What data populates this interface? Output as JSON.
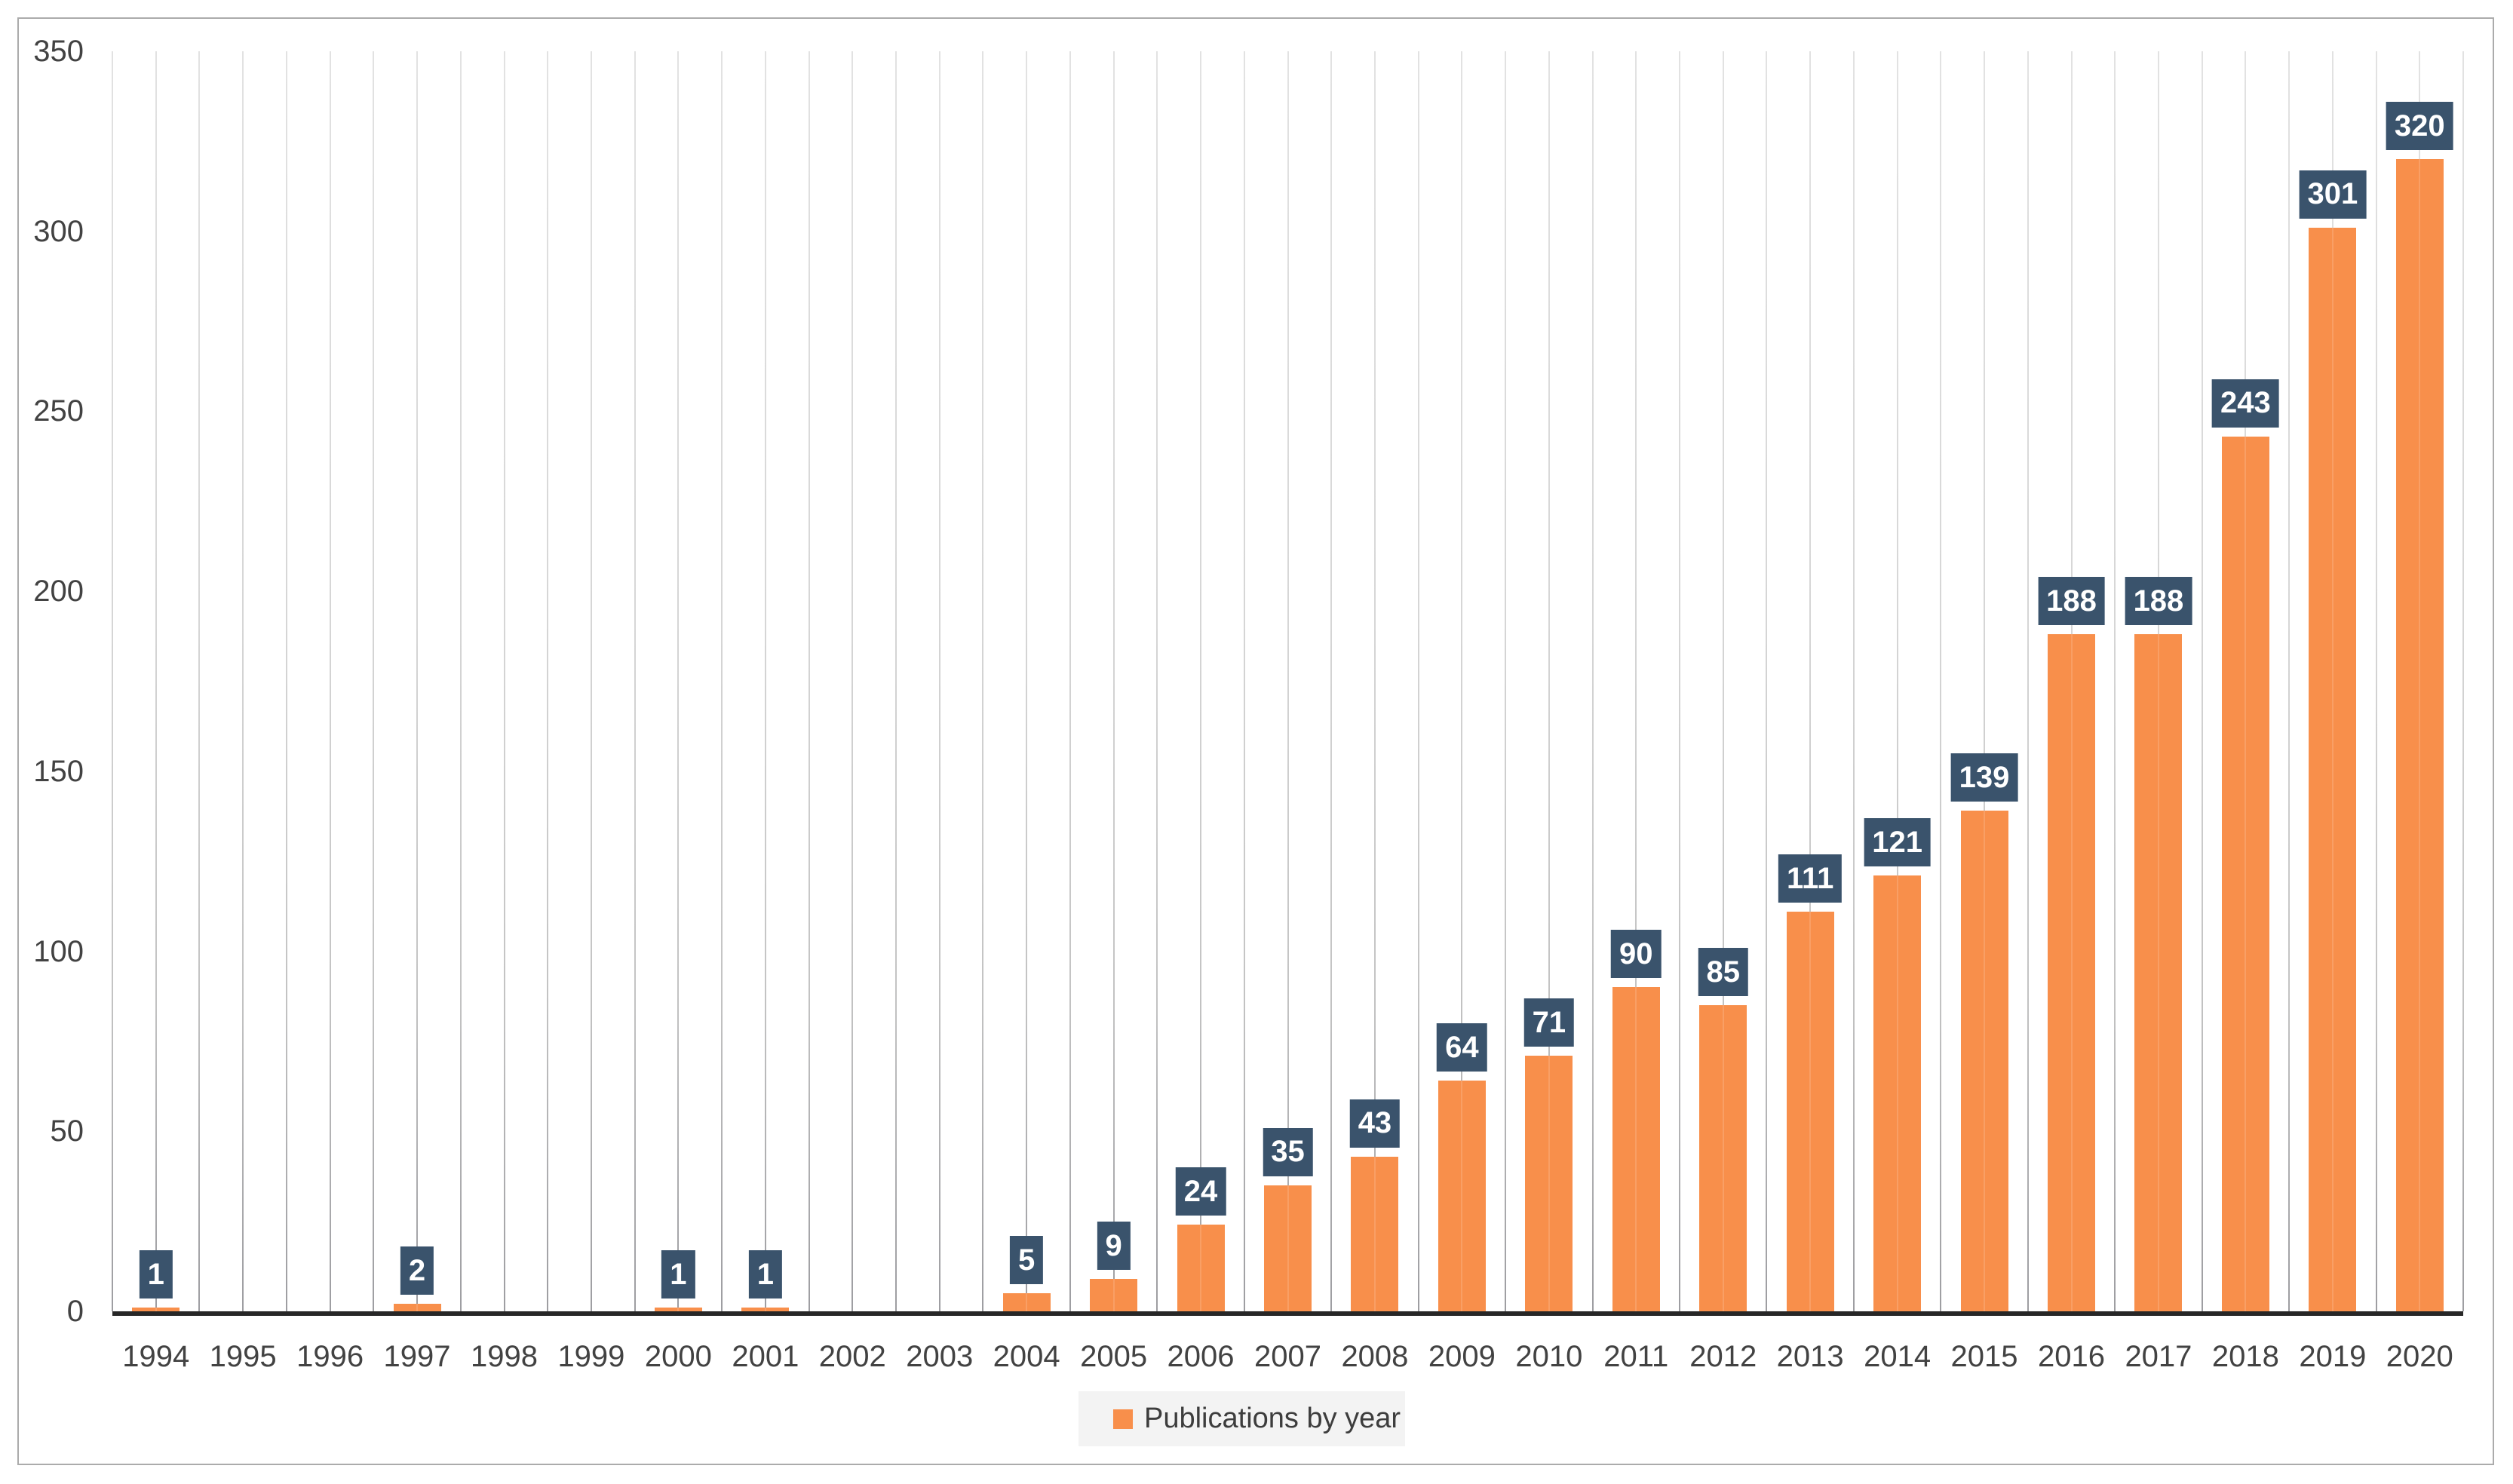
{
  "chart_data": {
    "type": "bar",
    "title": "",
    "xlabel": "",
    "ylabel": "",
    "categories": [
      "1994",
      "1995",
      "1996",
      "1997",
      "1998",
      "1999",
      "2000",
      "2001",
      "2002",
      "2003",
      "2004",
      "2005",
      "2006",
      "2007",
      "2008",
      "2009",
      "2010",
      "2011",
      "2012",
      "2013",
      "2014",
      "2015",
      "2016",
      "2017",
      "2018",
      "2019",
      "2020"
    ],
    "values": [
      1,
      0,
      0,
      2,
      0,
      0,
      1,
      1,
      0,
      0,
      5,
      9,
      24,
      35,
      43,
      64,
      71,
      90,
      85,
      111,
      121,
      139,
      188,
      188,
      243,
      301,
      320
    ],
    "series_name": "Publications by year",
    "ylim": [
      0,
      350
    ],
    "yticks": [
      0,
      50,
      100,
      150,
      200,
      250,
      300,
      350
    ],
    "grid": "vertical-gridlines",
    "legend_position": "bottom-center",
    "data_labels": "shown above bars for non-zero values"
  },
  "legend": {
    "label": "Publications by year"
  },
  "colors": {
    "bar": "#F88F4B",
    "data_label_bg": "#3A536C",
    "data_label_text": "#FFFFFF",
    "axis_line": "#272727",
    "tick_text": "#424242",
    "gridline": "#c9c9c9",
    "legend_bg": "#F3F3F3",
    "frame_border": "#ABABAB"
  }
}
